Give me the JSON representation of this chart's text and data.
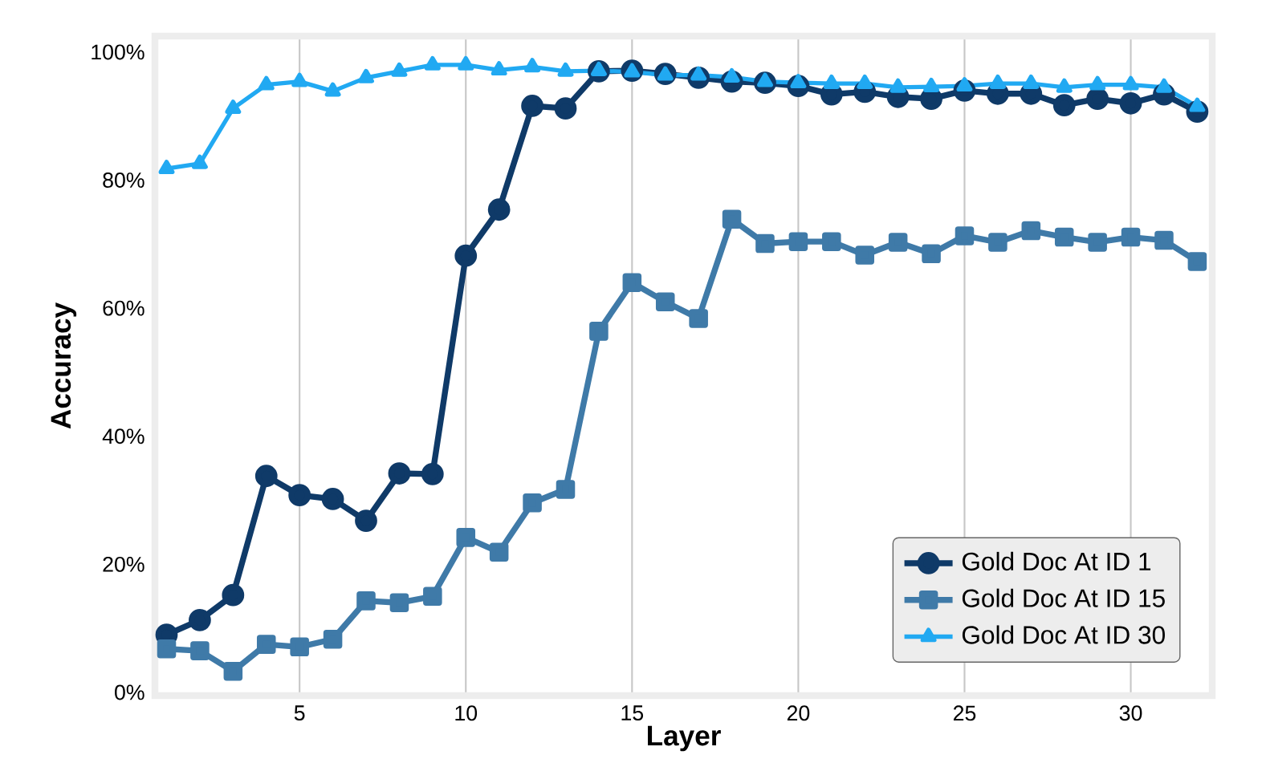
{
  "chart_data": {
    "type": "line",
    "xlabel": "Layer",
    "ylabel": "Accuracy",
    "x": [
      1,
      2,
      3,
      4,
      5,
      6,
      7,
      8,
      9,
      10,
      11,
      12,
      13,
      14,
      15,
      16,
      17,
      18,
      19,
      20,
      21,
      22,
      23,
      24,
      25,
      26,
      27,
      28,
      29,
      30,
      31,
      32
    ],
    "series": [
      {
        "name": "Gold Doc At ID 1",
        "color": "#0f3a68",
        "marker": "circle",
        "values": [
          9.0,
          11.3,
          15.2,
          33.8,
          30.8,
          30.2,
          26.8,
          34.2,
          34.1,
          68.2,
          75.4,
          91.6,
          91.2,
          97.0,
          97.1,
          96.6,
          96.0,
          95.4,
          95.2,
          94.7,
          93.4,
          93.8,
          93.0,
          92.7,
          94.0,
          93.5,
          93.5,
          91.7,
          92.7,
          92.0,
          93.4,
          90.7
        ]
      },
      {
        "name": "Gold Doc At ID 15",
        "color": "#3f7aa8",
        "marker": "square",
        "values": [
          6.8,
          6.5,
          3.3,
          7.5,
          7.1,
          8.3,
          14.3,
          14.0,
          15.0,
          24.2,
          21.9,
          29.6,
          31.7,
          56.4,
          64.0,
          61.0,
          58.4,
          73.9,
          70.1,
          70.4,
          70.4,
          68.3,
          70.3,
          68.5,
          71.3,
          70.3,
          72.1,
          71.1,
          70.3,
          71.1,
          70.6,
          67.3
        ]
      },
      {
        "name": "Gold Doc At ID 30",
        "color": "#21a9f2",
        "marker": "triangle",
        "values": [
          81.8,
          82.6,
          91.2,
          94.9,
          95.4,
          93.9,
          96.0,
          97.0,
          98.0,
          98.0,
          97.2,
          97.7,
          97.0,
          97.1,
          96.9,
          96.4,
          96.4,
          96.1,
          95.4,
          95.2,
          95.1,
          95.1,
          94.5,
          94.6,
          94.7,
          95.1,
          95.1,
          94.5,
          94.9,
          94.9,
          94.5,
          91.5
        ]
      }
    ],
    "xlim": [
      0.65,
      32.45
    ],
    "ylim": [
      -0.5,
      102.5
    ],
    "xticks": [
      5,
      10,
      15,
      20,
      25,
      30
    ],
    "yticks": [
      {
        "value": 0,
        "label": "0%"
      },
      {
        "value": 20,
        "label": "20%"
      },
      {
        "value": 40,
        "label": "40%"
      },
      {
        "value": 60,
        "label": "60%"
      },
      {
        "value": 80,
        "label": "80%"
      },
      {
        "value": 100,
        "label": "100%"
      }
    ],
    "grid": "x",
    "legend": "bottom right",
    "line_style": "solid"
  }
}
